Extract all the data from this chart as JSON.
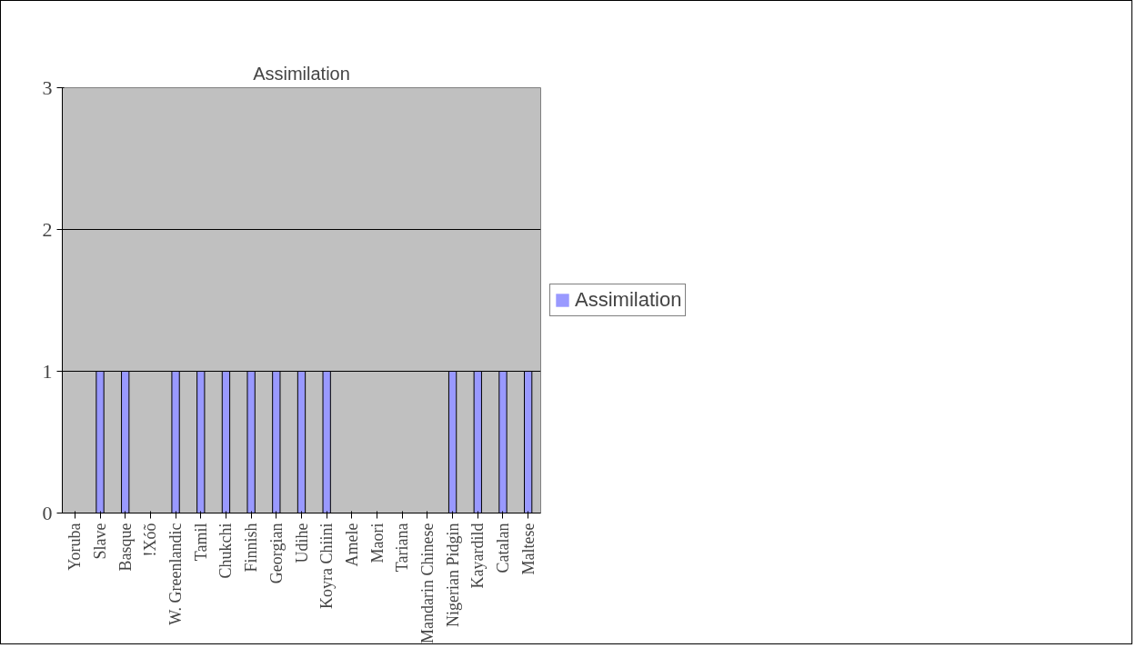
{
  "chart_data": {
    "type": "bar",
    "title": "Assimilation",
    "categories": [
      "Yoruba",
      "Slave",
      "Basque",
      "!Xóõ",
      "W. Greenlandic",
      "Tamil",
      "Chukchi",
      "Finnish",
      "Georgian",
      "Udihe",
      "Koyra Chiini",
      "Amele",
      "Maori",
      "Tariana",
      "Mandarin Chinese",
      "Nigerian Pidgin",
      "Kayardild",
      "Catalan",
      "Maltese"
    ],
    "series": [
      {
        "name": "Assimilation",
        "color": "#9999ff",
        "values": [
          0,
          1,
          1,
          0,
          1,
          1,
          1,
          1,
          1,
          1,
          1,
          0,
          0,
          0,
          0,
          1,
          1,
          1,
          1
        ]
      }
    ],
    "ylim": [
      0,
      3
    ],
    "yticks": [
      0,
      1,
      2,
      3
    ],
    "grid": "y",
    "legend": "right"
  }
}
